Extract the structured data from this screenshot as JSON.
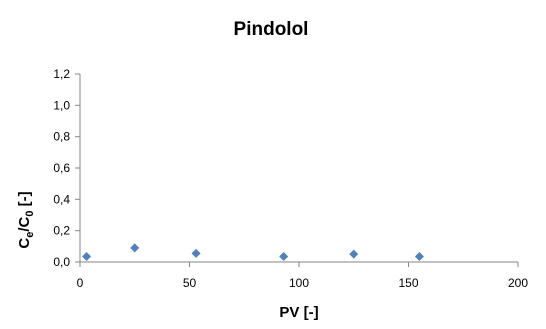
{
  "chart_data": {
    "type": "scatter",
    "title": "Pindolol",
    "xlabel": "PV [-]",
    "ylabel": {
      "parts": [
        "C",
        "e",
        "/C",
        "0",
        " [-]"
      ]
    },
    "xlim": [
      0,
      200
    ],
    "ylim": [
      0,
      1.2
    ],
    "x_ticks": [
      "0",
      "50",
      "100",
      "150",
      "200"
    ],
    "y_ticks": [
      "0,0",
      "0,2",
      "0,4",
      "0,6",
      "0,8",
      "1,0",
      "1,2"
    ],
    "grid": false,
    "legend": "none",
    "marker_color": "#4F81BD",
    "marker": "diamond",
    "series": [
      {
        "x": [
          3,
          25,
          53,
          93,
          125,
          155
        ],
        "y": [
          0.035,
          0.09,
          0.055,
          0.035,
          0.05,
          0.035
        ]
      }
    ]
  }
}
